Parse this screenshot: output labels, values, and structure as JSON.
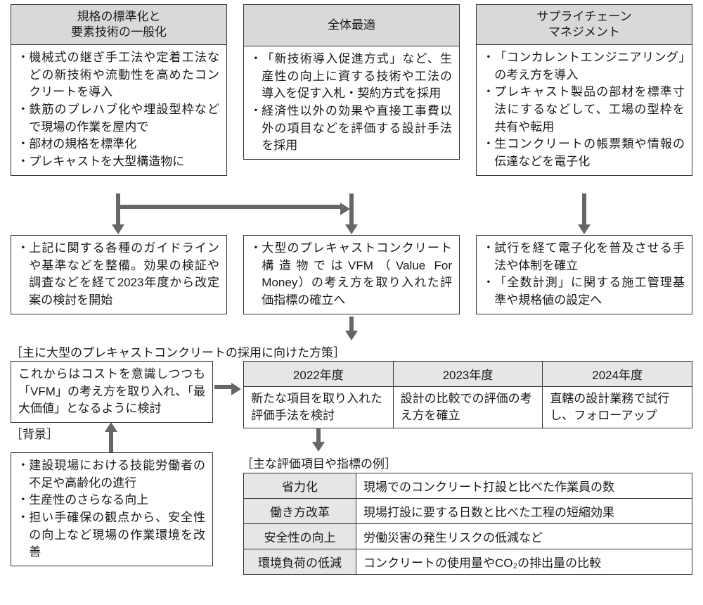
{
  "layout": {
    "type": "flowchart",
    "background_color": "#ffffff",
    "border_color": "#333333",
    "header_bg": "#d9d9d9",
    "table_header_bg": "#e6e6e6",
    "arrow_color": "#666666",
    "font_size_pt": 13
  },
  "top_boxes": [
    {
      "id": "std",
      "header": "規格の標準化と\n要素技術の一般化",
      "bullets": [
        "機械式の継ぎ手工法や定着工法などの新技術や流動性を高めたコンクリートを導入",
        "鉄筋のプレハブ化や埋設型枠などで現場の作業を屋内で",
        "部材の規格を標準化",
        "プレキャストを大型構造物に"
      ]
    },
    {
      "id": "opt",
      "header": "全体最適",
      "bullets": [
        "「新技術導入促進方式」など、生産性の向上に資する技術や工法の導入を促す入札・契約方式を採用",
        "経済性以外の効果や直接工事費以外の項目などを評価する設計手法を採用"
      ]
    },
    {
      "id": "scm",
      "header": "サプライチェーン\nマネジメント",
      "bullets": [
        "「コンカレントエンジニアリング」の考え方を導入",
        "プレキャスト製品の部材を標準寸法にするなどして、工場の型枠を共有や転用",
        "生コンクリートの帳票類や情報の伝達などを電子化"
      ]
    }
  ],
  "mid_boxes": [
    {
      "id": "mid_std",
      "bullets": [
        "上記に関する各種のガイドラインや基準などを整備。効果の検証や調査などを経て2023年度から改定案の検討を開始"
      ]
    },
    {
      "id": "mid_opt",
      "bullets": [
        "大型のプレキャストコンクリート構造物ではVFM（Value For Money）の考え方を取り入れた評価指標の確立へ"
      ]
    },
    {
      "id": "mid_scm",
      "bullets": [
        "試行を経て電子化を普及させる手法や体制を確立",
        "「全数計測」に関する施工管理基準や規格値の設定へ"
      ]
    }
  ],
  "section1_label": "［主に大型のプレキャストコンクリートの採用に向けた方策］",
  "vfm_box": "これからはコストを意識しつつも「VFM」の考え方を取り入れ、「最大価値」となるように検討",
  "timeline": {
    "headers": [
      "2022年度",
      "2023年度",
      "2024年度"
    ],
    "cells": [
      "新たな項目を取り入れた評価手法を検討",
      "設計の比較での評価の考え方を確立",
      "直轄の設計業務で試行し、フォローアップ"
    ]
  },
  "background_label": "［背景］",
  "background_bullets": [
    "建設現場における技能労働者の不足や高齢化の進行",
    "生産性のさらなる向上",
    "担い手確保の観点から、安全性の向上など現場の作業環境を改善"
  ],
  "eval_label": "［主な評価項目や指標の例］",
  "eval_rows": [
    {
      "k": "省力化",
      "v": "現場でのコンクリート打設と比べた作業員の数"
    },
    {
      "k": "働き方改革",
      "v": "現場打設に要する日数と比べた工程の短縮効果"
    },
    {
      "k": "安全性の向上",
      "v": "労働災害の発生リスクの低減など"
    },
    {
      "k": "環境負荷の低減",
      "v": "コンクリートの使用量やCO₂の排出量の比較"
    }
  ]
}
